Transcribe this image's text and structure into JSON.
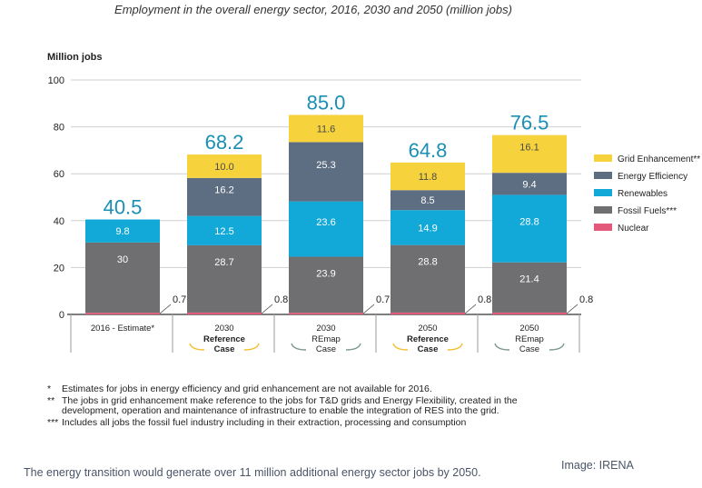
{
  "title": "Employment in the overall energy sector, 2016, 2030 and 2050 (million jobs)",
  "footnotes": [
    {
      "marker": "*",
      "text": "Estimates for jobs in energy efficiency and grid enhancement are not available for 2016."
    },
    {
      "marker": "**",
      "text": "The jobs in grid enhancement make reference to the jobs for T&D grids and Energy Flexibility, created in the development, operation and maintenance of infrastructure to enable the integration of RES into the grid."
    },
    {
      "marker": "***",
      "text": "Includes all jobs the fossil fuel industry including in their extraction, processing and consumption"
    }
  ],
  "caption": "The energy transition would generate over 11 million additional energy sector jobs by 2050.",
  "credit": "Image: IRENA",
  "colors": {
    "grid": "#f6d33c",
    "efficiency": "#5d6d82",
    "renewables": "#12a9d8",
    "fossil": "#6f6e70",
    "nuclear": "#e4587a",
    "total_label": "#1a8fb5",
    "reference_bracket": "#f2c12e",
    "remap_bracket": "#7d9a8a"
  },
  "chart_data": {
    "type": "bar",
    "stacked": true,
    "ylabel": "Million jobs",
    "ylim": [
      0,
      100
    ],
    "yticks": [
      0,
      20,
      40,
      60,
      80,
      100
    ],
    "categories": [
      {
        "year": "2016 - Estimate*",
        "case": "",
        "case_type": "none"
      },
      {
        "year": "2030",
        "case": "Reference Case",
        "case_type": "reference"
      },
      {
        "year": "2030",
        "case": "REmap Case",
        "case_type": "remap"
      },
      {
        "year": "2050",
        "case": "Reference Case",
        "case_type": "reference"
      },
      {
        "year": "2050",
        "case": "REmap Case",
        "case_type": "remap"
      }
    ],
    "totals": [
      "40.5",
      "68.2",
      "85.0",
      "64.8",
      "76.5"
    ],
    "series": [
      {
        "name": "Nuclear",
        "color_key": "nuclear",
        "values": [
          0.7,
          0.8,
          0.7,
          0.8,
          0.8
        ],
        "labels": [
          "0.7",
          "0.8",
          "0.7",
          "0.8",
          "0.8"
        ]
      },
      {
        "name": "Fossil Fuels***",
        "color_key": "fossil",
        "values": [
          30,
          28.7,
          23.9,
          28.8,
          21.4
        ],
        "labels": [
          "30",
          "28.7",
          "23.9",
          "28.8",
          "21.4"
        ]
      },
      {
        "name": "Renewables",
        "color_key": "renewables",
        "values": [
          9.8,
          12.5,
          23.6,
          14.9,
          28.8
        ],
        "labels": [
          "9.8",
          "12.5",
          "23.6",
          "14.9",
          "28.8"
        ]
      },
      {
        "name": "Energy Efficiency",
        "color_key": "efficiency",
        "values": [
          0,
          16.2,
          25.3,
          8.5,
          9.4
        ],
        "labels": [
          "",
          "16.2",
          "25.3",
          "8.5",
          "9.4"
        ]
      },
      {
        "name": "Grid Enhancement**",
        "color_key": "grid",
        "values": [
          0,
          10.0,
          11.6,
          11.8,
          16.1
        ],
        "labels": [
          "",
          "10.0",
          "11.6",
          "11.8",
          "16.1"
        ]
      }
    ],
    "legend_order": [
      "Grid Enhancement**",
      "Energy Efficiency",
      "Renewables",
      "Fossil Fuels***",
      "Nuclear"
    ],
    "legend_position": "right",
    "grid": true
  }
}
